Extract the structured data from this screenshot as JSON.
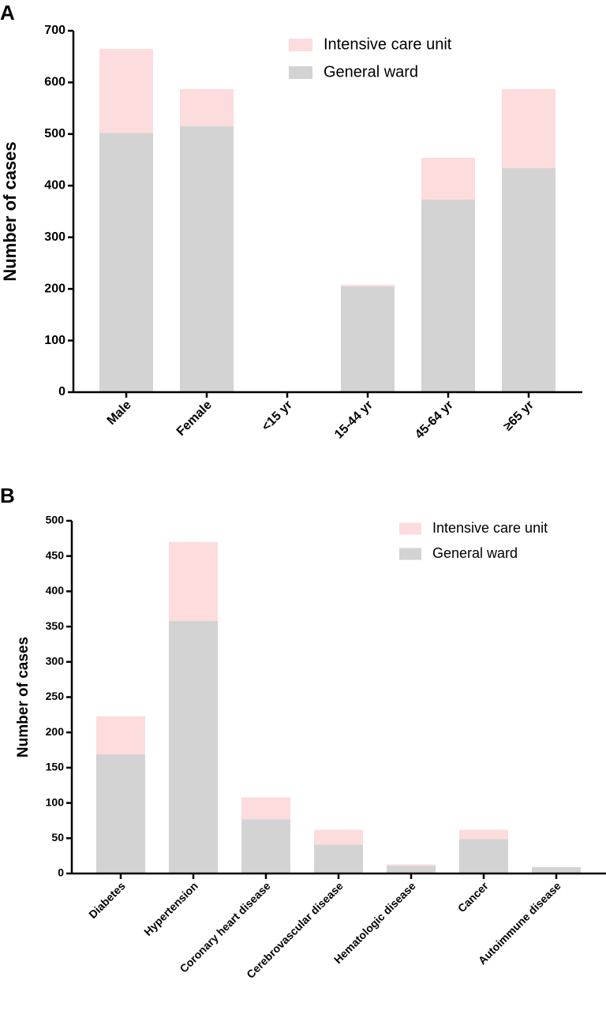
{
  "chart_data": [
    {
      "type": "bar",
      "panel_label": "A",
      "y_label": "Number of cases",
      "stacked": true,
      "categories": [
        "Male",
        "Female",
        "<15 yr",
        "15-44 yr",
        "45-64 yr",
        "≥65 yr"
      ],
      "series": [
        {
          "name": "Intensive care unit",
          "color": "#fddcdd",
          "values": [
            163,
            72,
            0,
            3,
            81,
            153
          ]
        },
        {
          "name": "General ward",
          "color": "#d3d3d3",
          "values": [
            502,
            515,
            0,
            205,
            373,
            434
          ]
        }
      ],
      "ylim": [
        0,
        700
      ],
      "yticks": [
        0,
        100,
        200,
        300,
        400,
        500,
        600,
        700
      ]
    },
    {
      "type": "bar",
      "panel_label": "B",
      "y_label": "Number of cases",
      "stacked": true,
      "categories": [
        "Diabetes",
        "Hypertension",
        "Coronary heart disease",
        "Cerebrovascular disease",
        "Hematologic disease",
        "Cancer",
        "Autoimmune disease"
      ],
      "series": [
        {
          "name": "Intensive care unit",
          "color": "#fddcdd",
          "values": [
            54,
            112,
            31,
            21,
            2,
            13,
            0
          ]
        },
        {
          "name": "General ward",
          "color": "#d3d3d3",
          "values": [
            169,
            358,
            77,
            41,
            11,
            49,
            9
          ]
        }
      ],
      "ylim": [
        0,
        500
      ],
      "yticks": [
        0,
        50,
        100,
        150,
        200,
        250,
        300,
        350,
        400,
        450,
        500
      ]
    }
  ]
}
